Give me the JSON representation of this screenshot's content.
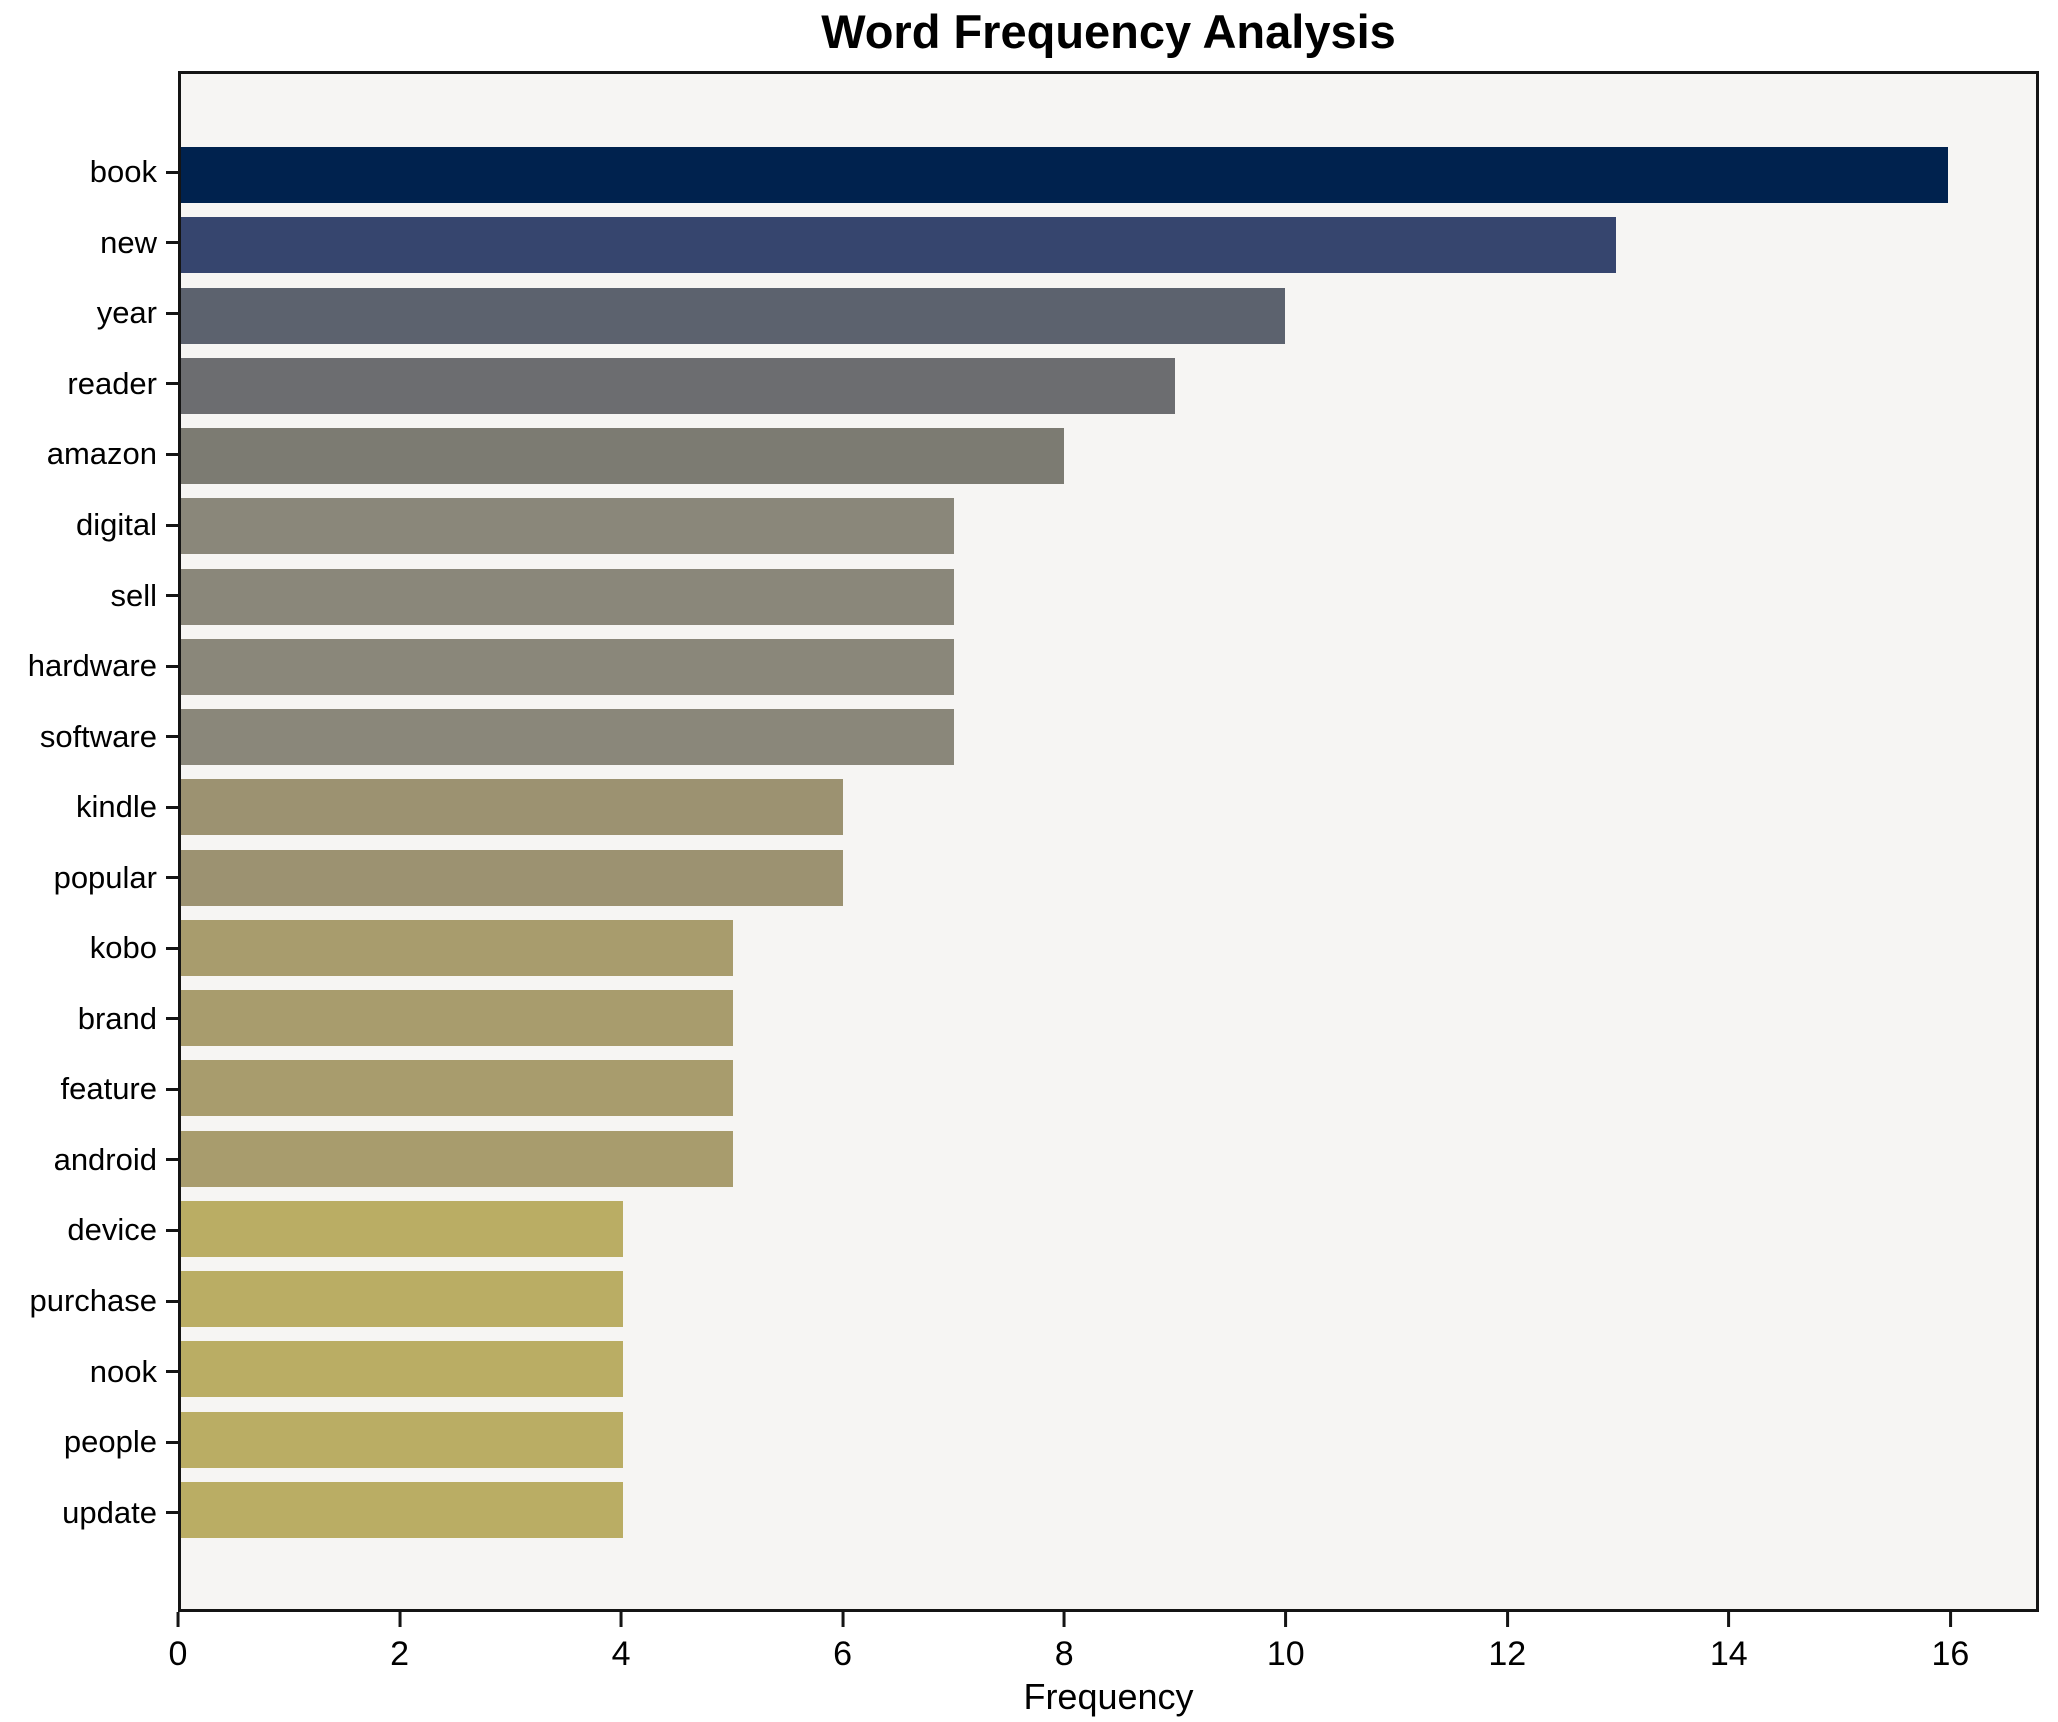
{
  "figure": {
    "title": "Word Frequency Analysis",
    "xlabel": "Frequency"
  },
  "colors": {
    "figure_background": "#ffffff",
    "axes_background": "#f6f5f3",
    "spine": "#141414",
    "text": "#000000"
  },
  "chart_data": {
    "type": "bar",
    "orientation": "horizontal",
    "title": "Word Frequency Analysis",
    "xlabel": "Frequency",
    "ylabel": "",
    "categories": [
      "book",
      "new",
      "year",
      "reader",
      "amazon",
      "digital",
      "sell",
      "hardware",
      "software",
      "kindle",
      "popular",
      "kobo",
      "brand",
      "feature",
      "android",
      "device",
      "purchase",
      "nook",
      "people",
      "update"
    ],
    "values": [
      16,
      13,
      10,
      9,
      8,
      7,
      7,
      7,
      7,
      6,
      6,
      5,
      5,
      5,
      5,
      4,
      4,
      4,
      4,
      4
    ],
    "bar_colors": [
      "#00224e",
      "#36456e",
      "#5c626e",
      "#6c6d70",
      "#7c7b72",
      "#8a877a",
      "#8a877a",
      "#8a877a",
      "#8a877a",
      "#9c9271",
      "#9c9271",
      "#a89c6d",
      "#a89c6d",
      "#a89c6d",
      "#a89c6d",
      "#baad64",
      "#baad64",
      "#baad64",
      "#baad64",
      "#baad64"
    ],
    "xticks": [
      0,
      2,
      4,
      6,
      8,
      10,
      12,
      14,
      16
    ],
    "xlim": [
      0,
      16.8
    ],
    "grid": false,
    "legend": null,
    "colormap": "cividis"
  }
}
